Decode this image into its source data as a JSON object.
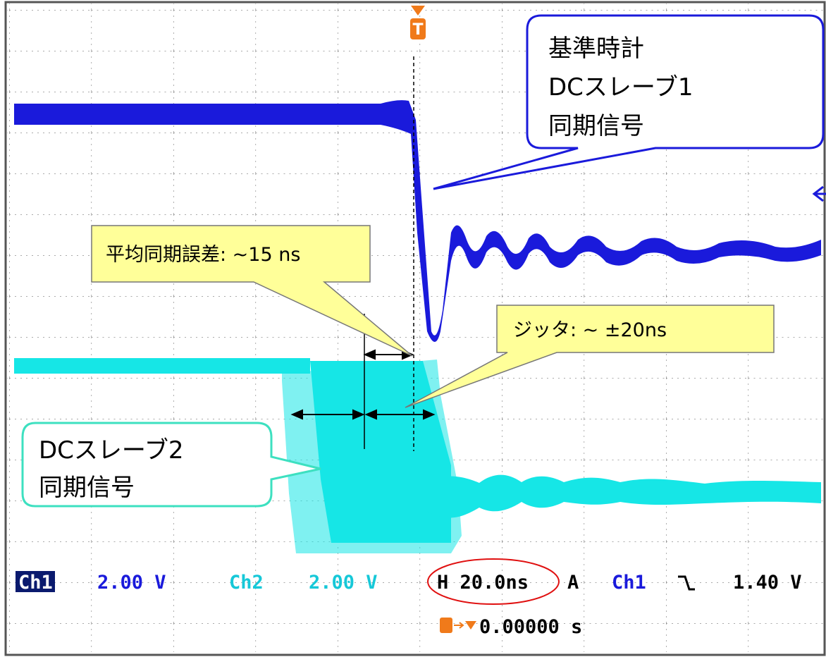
{
  "trigger_marker": "T",
  "callouts": {
    "reference": {
      "lines": [
        "基準時計",
        "DCスレーブ1",
        "同期信号"
      ]
    },
    "mean_error": {
      "text": "平均同期誤差: ~15 ns"
    },
    "jitter": {
      "text": "ジッタ: ~ ±20ns"
    },
    "slave2": {
      "lines": [
        "DCスレーブ2",
        "同期信号"
      ]
    }
  },
  "status": {
    "ch1_label": "Ch1",
    "ch1_scale": "2.00 V",
    "ch2_label": "Ch2",
    "ch2_scale": "2.00 V",
    "horizontal": "H 20.0ns",
    "acquire": "A",
    "trigger_source": "Ch1",
    "trigger_level": "1.40 V",
    "trigger_position": "0.00000 s"
  }
}
